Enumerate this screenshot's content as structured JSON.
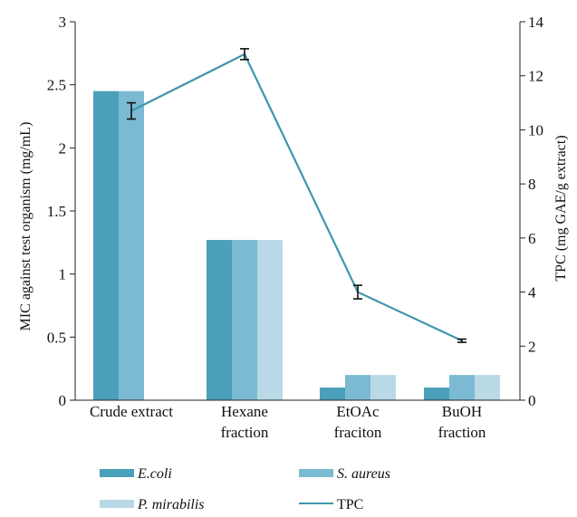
{
  "chart_data": {
    "type": "bar",
    "categories": [
      [
        "Crude extract"
      ],
      [
        "Hexane",
        "fraction"
      ],
      [
        "EtOAc",
        "fraciton"
      ],
      [
        "BuOH",
        "fraction"
      ]
    ],
    "series": [
      {
        "name": "E.coli",
        "axis": "left",
        "values": [
          2.45,
          1.27,
          0.1,
          0.1
        ],
        "color": "#4aa0b8"
      },
      {
        "name": "S. aureus",
        "axis": "left",
        "values": [
          2.45,
          1.27,
          0.2,
          0.2
        ],
        "color": "#7bbad2"
      },
      {
        "name": "P. mirabilis",
        "axis": "left",
        "values": [
          0,
          1.27,
          0.2,
          0.2
        ],
        "color": "#b8d9e5"
      }
    ],
    "line_series": {
      "name": "TPC",
      "axis": "right",
      "values": [
        10.7,
        12.8,
        4.0,
        2.2
      ],
      "error": [
        0.3,
        0.2,
        0.25,
        0.06
      ],
      "color": "#3f95ad"
    },
    "y_left": {
      "label": "MIC against test organism (mg/mL)",
      "range": [
        0,
        3
      ],
      "ticks": [
        0,
        0.5,
        1,
        1.5,
        2,
        2.5,
        3
      ],
      "tick_labels": [
        "0",
        "0.5",
        "1",
        "1.5",
        "2",
        "2.5",
        "3"
      ]
    },
    "y_right": {
      "label": "TPC (mg GAE/g extract)",
      "range": [
        0,
        14
      ],
      "ticks": [
        0,
        2,
        4,
        6,
        8,
        10,
        12,
        14
      ],
      "tick_labels": [
        "0",
        "2",
        "4",
        "6",
        "8",
        "10",
        "12",
        "14"
      ]
    },
    "legend": {
      "placement": "bottom",
      "entries": [
        {
          "label": "E.coli",
          "kind": "bar",
          "color": "#4aa0b8",
          "italic": true
        },
        {
          "label": "S. aureus",
          "kind": "bar",
          "color": "#7bbad2",
          "italic": true
        },
        {
          "label": "P. mirabilis",
          "kind": "bar",
          "color": "#b8d9e5",
          "italic": true
        },
        {
          "label": "TPC",
          "kind": "line",
          "color": "#3f95ad",
          "italic": false
        }
      ]
    },
    "grid": false
  }
}
